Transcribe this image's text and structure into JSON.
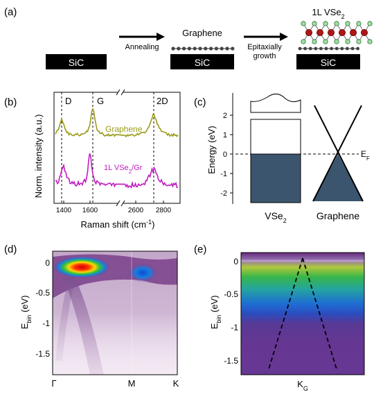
{
  "panels": {
    "a": {
      "label": "(a)",
      "substrate": "SiC",
      "step1": "Annealing",
      "step2_line1": "Epitaxially",
      "step2_line2": "growth",
      "graphene_label": "Graphene",
      "vse2_prefix": "1L VSe",
      "vse2_sub": "2"
    },
    "b": {
      "label": "(b)",
      "ylabel": "Norm. intensity (a.u.)",
      "xlabel": "Raman shift (cm",
      "xlabel_sup": "-1",
      "xlabel_close": ")",
      "peaks": [
        "D",
        "G",
        "2D"
      ],
      "xticks": [
        "1400",
        "1600",
        "2600",
        "2800"
      ],
      "series": [
        {
          "name": "Graphene",
          "color": "#9a9a18"
        },
        {
          "name": "1L VSe",
          "sub": "2",
          "suffix": "/Gr",
          "color": "#c21bc2"
        }
      ]
    },
    "c": {
      "label": "(c)",
      "ylabel": "Energy (eV)",
      "yticks": [
        "2",
        "1",
        "0",
        "-1",
        "-2"
      ],
      "fermi": "E",
      "fermi_sub": "F",
      "left_label": "VSe",
      "left_sub": "2",
      "right_label": "Graphene",
      "fill_color": "#3c556e"
    },
    "d": {
      "label": "(d)",
      "ylabel": "E",
      "ylabel_sub": "bin",
      "ylabel_unit": " (eV)",
      "yticks": [
        "0",
        "-0.5",
        "-1",
        "-1.5"
      ],
      "xticks": [
        "Γ",
        "M",
        "K"
      ]
    },
    "e": {
      "label": "(e)",
      "ylabel": "E",
      "ylabel_sub": "bin",
      "ylabel_unit": " (eV)",
      "yticks": [
        "0",
        "-0.5",
        "-1",
        "-1.5"
      ],
      "xlabel": "K",
      "xlabel_sub": "G"
    }
  }
}
